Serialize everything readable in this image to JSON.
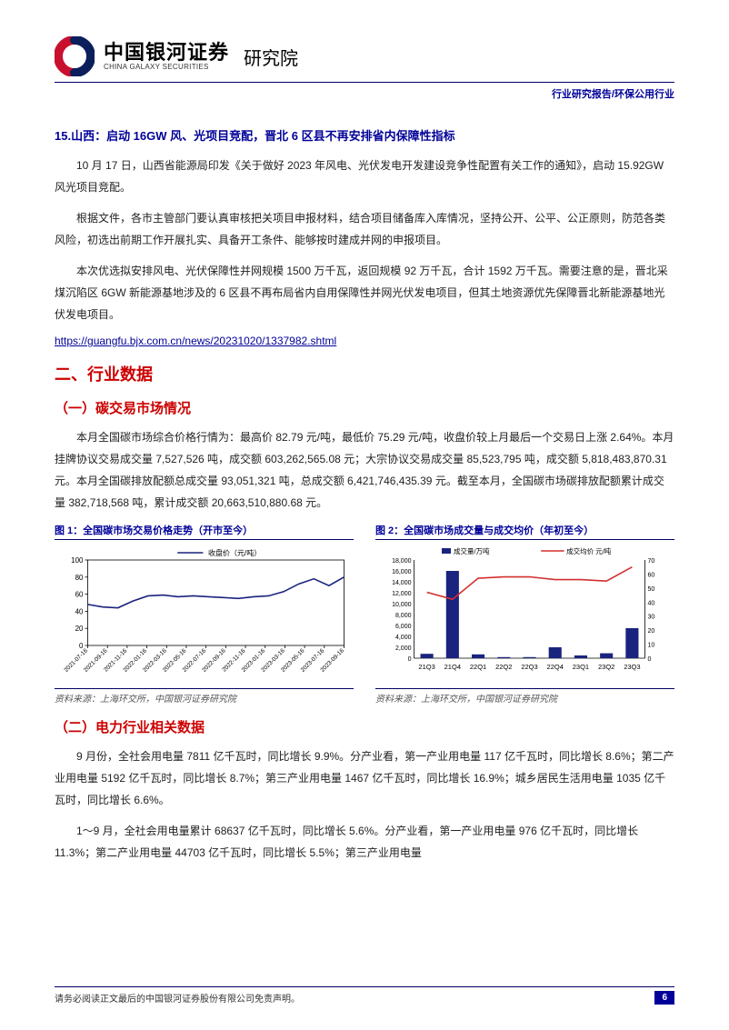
{
  "header": {
    "company_cn": "中国银河证券",
    "company_en": "CHINA GALAXY SECURITIES",
    "institute": "研究院",
    "logo_colors": {
      "red": "#c8102e",
      "navy": "#0a1f5c"
    }
  },
  "breadcrumb": "行业研究报告/环保公用行业",
  "section15": {
    "title": "15.山西：启动 16GW 风、光项目竞配，晋北 6 区县不再安排省内保障性指标",
    "p1": "10 月 17 日，山西省能源局印发《关于做好 2023 年风电、光伏发电开发建设竞争性配置有关工作的通知》，启动 15.92GW 风光项目竞配。",
    "p2": "根据文件，各市主管部门要认真审核把关项目申报材料，结合项目储备库入库情况，坚持公开、公平、公正原则，防范各类风险，初选出前期工作开展扎实、具备开工条件、能够按时建成并网的申报项目。",
    "p3": "本次优选拟安排风电、光伏保障性并网规模 1500 万千瓦，返回规模 92 万千瓦，合计 1592 万千瓦。需要注意的是，晋北采煤沉陷区 6GW 新能源基地涉及的 6 区县不再布局省内自用保障性并网光伏发电项目，但其土地资源优先保障晋北新能源基地光伏发电项目。",
    "link": "https://guangfu.bjx.com.cn/news/20231020/1337982.shtml"
  },
  "h2_industry_data": "二、行业数据",
  "h3_carbon": "（一）碳交易市场情况",
  "carbon_para": "本月全国碳市场综合价格行情为：最高价 82.79 元/吨，最低价 75.29 元/吨，收盘价较上月最后一个交易日上涨 2.64%。本月挂牌协议交易成交量 7,527,526 吨，成交额 603,262,565.08 元；大宗协议交易成交量 85,523,795 吨，成交额 5,818,483,870.31 元。本月全国碳排放配额总成交量 93,051,321 吨，总成交额 6,421,746,435.39 元。截至本月，全国碳市场碳排放配额累计成交量 382,718,568 吨，累计成交额 20,663,510,880.68 元。",
  "chart1": {
    "title": "图 1：全国碳市场交易价格走势（开市至今）",
    "type": "line",
    "legend": "收盘价（元/吨）",
    "source": "资料来源：上海环交所，中国银河证券研究院",
    "ylim": [
      0,
      100
    ],
    "ytick_step": 20,
    "x_labels": [
      "2021-07-16",
      "2021-09-16",
      "2021-11-16",
      "2022-01-16",
      "2022-03-16",
      "2022-05-16",
      "2022-07-16",
      "2022-09-16",
      "2022-11-16",
      "2023-01-16",
      "2023-03-16",
      "2023-05-16",
      "2023-07-16",
      "2023-09-16"
    ],
    "values": [
      48,
      45,
      44,
      52,
      58,
      59,
      57,
      58,
      57,
      56,
      55,
      57,
      58,
      63,
      72,
      78,
      70,
      80
    ],
    "line_color": "#1a237e",
    "line_width": 1.6,
    "axis_color": "#000000",
    "label_fontsize": 8
  },
  "chart2": {
    "title": "图 2：全国碳市场成交量与成交均价（年初至今）",
    "type": "bar-line",
    "legend_bar": "成交量/万吨",
    "legend_line": "成交均价 元/吨",
    "source": "资料来源：上海环交所，中国银河证券研究院",
    "categories": [
      "21Q3",
      "21Q4",
      "22Q1",
      "22Q2",
      "22Q3",
      "22Q4",
      "23Q1",
      "23Q2",
      "23Q3"
    ],
    "bar_values": [
      800,
      16000,
      700,
      200,
      200,
      2000,
      500,
      900,
      5500
    ],
    "line_values": [
      47,
      42,
      57,
      58,
      58,
      56,
      56,
      55,
      65
    ],
    "y_left": {
      "lim": [
        0,
        18000
      ],
      "tick_step": 2000
    },
    "y_right": {
      "lim": [
        0,
        70
      ],
      "tick_step": 10
    },
    "bar_color": "#1a237e",
    "line_color": "#d32f2f",
    "line_width": 1.6,
    "axis_color": "#000000",
    "label_fontsize": 8
  },
  "h3_power": "（二）电力行业相关数据",
  "power_p1": "9 月份，全社会用电量 7811 亿千瓦时，同比增长 9.9%。分产业看，第一产业用电量 117 亿千瓦时，同比增长 8.6%；第二产业用电量 5192 亿千瓦时，同比增长 8.7%；第三产业用电量 1467 亿千瓦时，同比增长 16.9%；城乡居民生活用电量 1035 亿千瓦时，同比增长 6.6%。",
  "power_p2": "1～9 月，全社会用电量累计 68637 亿千瓦时，同比增长 5.6%。分产业看，第一产业用电量 976 亿千瓦时，同比增长 11.3%；第二产业用电量 44703 亿千瓦时，同比增长 5.5%；第三产业用电量",
  "footer": {
    "disclaimer": "请务必阅读正文最后的中国银河证券股份有限公司免责声明。",
    "page": "6"
  },
  "colors": {
    "navy": "#000099",
    "red": "#cc0000",
    "rule": "#000066"
  }
}
